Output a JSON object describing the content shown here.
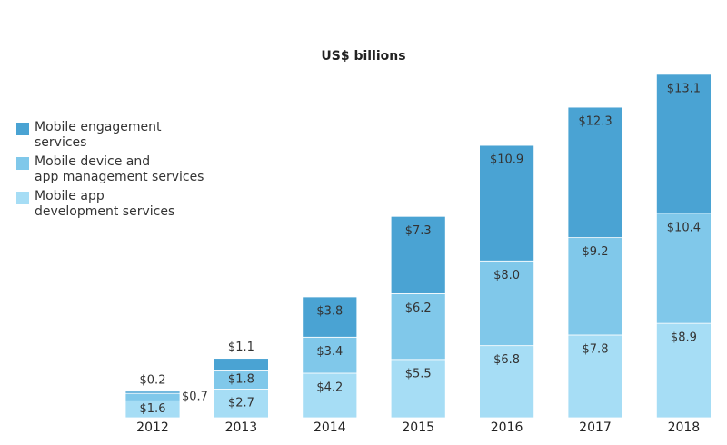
{
  "chart_data": {
    "type": "stacked-bar",
    "title": "US$ billions",
    "categories": [
      "2012",
      "2013",
      "2014",
      "2015",
      "2016",
      "2017",
      "2018"
    ],
    "series": [
      {
        "name": "Mobile app\ndevelopment services",
        "color": "#a6ddf5",
        "values": [
          1.6,
          2.7,
          4.2,
          5.5,
          6.8,
          7.8,
          8.9
        ],
        "value_labels": [
          "$1.6",
          "$2.7",
          "$4.2",
          "$5.5",
          "$6.8",
          "$7.8",
          "$8.9"
        ]
      },
      {
        "name": "Mobile device and\napp management services",
        "color": "#80c8ea",
        "values": [
          0.7,
          1.8,
          3.4,
          6.2,
          8.0,
          9.2,
          10.4
        ],
        "value_labels": [
          "$0.7",
          "$1.8",
          "$3.4",
          "$6.2",
          "$8.0",
          "$9.2",
          "$10.4"
        ]
      },
      {
        "name": "Mobile engagement\nservices",
        "color": "#4aa3d3",
        "values": [
          0.2,
          1.1,
          3.8,
          7.3,
          10.9,
          12.3,
          13.1
        ],
        "value_labels": [
          "$0.2",
          "$1.1",
          "$3.8",
          "$7.3",
          "$10.9",
          "$12.3",
          "$13.1"
        ]
      }
    ]
  }
}
